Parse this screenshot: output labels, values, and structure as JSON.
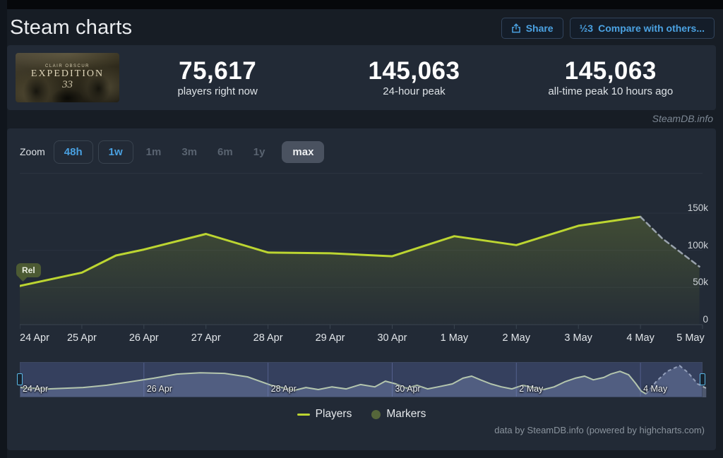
{
  "header": {
    "title": "Steam charts",
    "share_label": "Share",
    "compare_label": "Compare with others...",
    "compare_icon_glyph": "½3"
  },
  "stats": {
    "capsule": {
      "line1": "CLAIR OBSCUR",
      "line2": "EXPEDITION",
      "line3": "33"
    },
    "items": [
      {
        "value": "75,617",
        "label": "players right now"
      },
      {
        "value": "145,063",
        "label": "24-hour peak"
      },
      {
        "value": "145,063",
        "label": "all-time peak 10 hours ago"
      }
    ]
  },
  "watermark": "SteamDB.info",
  "toolbar": {
    "zoom_label": "Zoom",
    "buttons": [
      {
        "label": "48h",
        "state": "active"
      },
      {
        "label": "1w",
        "state": "active"
      },
      {
        "label": "1m",
        "state": "disabled"
      },
      {
        "label": "3m",
        "state": "disabled"
      },
      {
        "label": "6m",
        "state": "disabled"
      },
      {
        "label": "1y",
        "state": "disabled"
      },
      {
        "label": "max",
        "state": "selected"
      }
    ]
  },
  "chart_data": {
    "type": "line",
    "title": "Steam charts",
    "xlabel": "",
    "ylabel": "",
    "ylim": [
      0,
      204000
    ],
    "grid": true,
    "legend_position": "bottom",
    "y_ticks": [
      {
        "value": 0,
        "label": "0"
      },
      {
        "value": 50000,
        "label": "50k"
      },
      {
        "value": 100000,
        "label": "100k"
      },
      {
        "value": 150000,
        "label": "150k"
      }
    ],
    "x_tick_labels": [
      "24 Apr",
      "25 Apr",
      "26 Apr",
      "27 Apr",
      "28 Apr",
      "29 Apr",
      "30 Apr",
      "1 May",
      "2 May",
      "3 May",
      "4 May",
      "5 May"
    ],
    "series": [
      {
        "name": "Players",
        "color": "#bcd531",
        "points_day_value": [
          [
            0,
            52000
          ],
          [
            1,
            70000
          ],
          [
            1.55,
            93000
          ],
          [
            2,
            101000
          ],
          [
            3,
            122000
          ],
          [
            4,
            97000
          ],
          [
            5,
            96000
          ],
          [
            6,
            92000
          ],
          [
            7,
            119000
          ],
          [
            8,
            107000
          ],
          [
            9,
            133000
          ],
          [
            9.5,
            139000
          ],
          [
            10,
            145063
          ]
        ]
      }
    ],
    "projection_dashed_points": [
      [
        10,
        145063
      ],
      [
        10.35,
        116000
      ],
      [
        10.65,
        97000
      ],
      [
        10.95,
        78000
      ]
    ],
    "annotations": [
      {
        "label": "Rel",
        "day": 0,
        "value": 52000
      }
    ],
    "navigator": {
      "solid_points": [
        [
          0,
          43000
        ],
        [
          0.45,
          37000
        ],
        [
          1.02,
          43000
        ],
        [
          1.4,
          53000
        ],
        [
          1.77,
          68000
        ],
        [
          2.16,
          84000
        ],
        [
          2.53,
          102000
        ],
        [
          2.91,
          108000
        ],
        [
          3.3,
          105000
        ],
        [
          3.67,
          90000
        ],
        [
          4.05,
          53000
        ],
        [
          4.43,
          31000
        ],
        [
          4.61,
          43000
        ],
        [
          4.81,
          34000
        ],
        [
          5.03,
          46000
        ],
        [
          5.26,
          37000
        ],
        [
          5.49,
          56000
        ],
        [
          5.72,
          46000
        ],
        [
          5.89,
          71000
        ],
        [
          6.06,
          59000
        ],
        [
          6.23,
          40000
        ],
        [
          6.4,
          53000
        ],
        [
          6.57,
          37000
        ],
        [
          6.74,
          46000
        ],
        [
          6.97,
          59000
        ],
        [
          7.14,
          84000
        ],
        [
          7.28,
          93000
        ],
        [
          7.42,
          77000
        ],
        [
          7.59,
          59000
        ],
        [
          7.76,
          46000
        ],
        [
          7.93,
          37000
        ],
        [
          8.1,
          53000
        ],
        [
          8.27,
          43000
        ],
        [
          8.44,
          34000
        ],
        [
          8.61,
          46000
        ],
        [
          8.78,
          68000
        ],
        [
          8.95,
          84000
        ],
        [
          9.1,
          93000
        ],
        [
          9.24,
          77000
        ],
        [
          9.41,
          87000
        ],
        [
          9.52,
          102000
        ],
        [
          9.67,
          114000
        ],
        [
          9.81,
          99000
        ],
        [
          9.92,
          62000
        ],
        [
          10.01,
          28000
        ],
        [
          10.09,
          15000
        ]
      ],
      "dashed_points": [
        [
          10.09,
          15000
        ],
        [
          10.26,
          71000
        ],
        [
          10.43,
          114000
        ],
        [
          10.63,
          139000
        ],
        [
          10.77,
          108000
        ],
        [
          10.92,
          59000
        ],
        [
          11.06,
          40000
        ]
      ],
      "gridline_days": [
        0,
        2,
        4,
        6,
        8,
        10
      ],
      "labels": [
        {
          "day": 0,
          "text": "24 Apr"
        },
        {
          "day": 2,
          "text": "26 Apr"
        },
        {
          "day": 4,
          "text": "28 Apr"
        },
        {
          "day": 6,
          "text": "30 Apr"
        },
        {
          "day": 8,
          "text": "2 May"
        },
        {
          "day": 10,
          "text": "4 May"
        }
      ]
    }
  },
  "legend": [
    {
      "label": "Players",
      "swatch": "line",
      "color": "#bcd531"
    },
    {
      "label": "Markers",
      "swatch": "circle",
      "color": "#55663a"
    }
  ],
  "footer_credit": "data by SteamDB.info (powered by highcharts.com)",
  "colors": {
    "accent_blue": "#49a0e0",
    "series_green": "#bcd531",
    "projection_gray": "#99a2ac",
    "panel_bg": "#222a36",
    "page_bg": "#171d25"
  }
}
